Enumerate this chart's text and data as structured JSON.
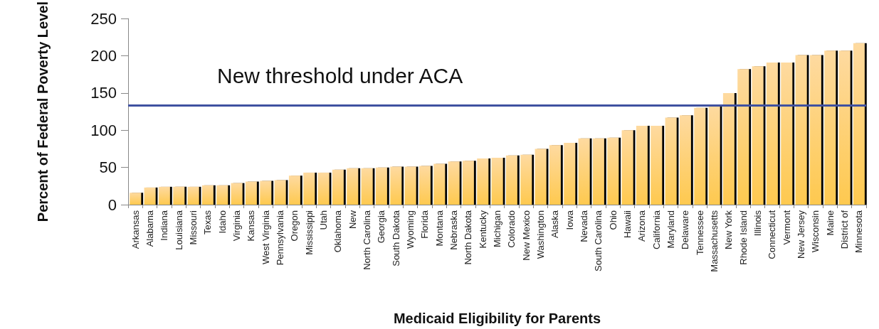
{
  "chart_data": {
    "type": "bar",
    "xlabel": "Medicaid Eligibility for Parents",
    "ylabel": "Percent of Federal Poverty Level",
    "categories": [
      "Arkansas",
      "Alabama",
      "Indiana",
      "Louisiana",
      "Missouri",
      "Texas",
      "Idaho",
      "Virginia",
      "Kansas",
      "West Virginia",
      "Pennsylvania",
      "Oregon",
      "Mississippi",
      "Utah",
      "Oklahoma",
      "New",
      "North Carolina",
      "Georgia",
      "South Dakota",
      "Wyoming",
      "Florida",
      "Montana",
      "Nebraska",
      "North Dakota",
      "Kentucky",
      "Michigan",
      "Colorado",
      "New Mexico",
      "Washington",
      "Alaska",
      "Iowa",
      "Nevada",
      "South Carolina",
      "Ohio",
      "Hawaii",
      "Arizona",
      "California",
      "Maryland",
      "Delaware",
      "Tennessee",
      "Massachusetts",
      "New York",
      "Rhode Island",
      "Illinois",
      "Connecticut",
      "Vermont",
      "New Jersey",
      "Wisconsin",
      "Maine",
      "District of",
      "Minnesota"
    ],
    "values": [
      16,
      23,
      24,
      24,
      24,
      26,
      26,
      29,
      31,
      32,
      33,
      39,
      43,
      43,
      47,
      49,
      49,
      50,
      51,
      51,
      52,
      55,
      58,
      59,
      62,
      63,
      66,
      67,
      75,
      80,
      83,
      89,
      89,
      90,
      100,
      106,
      106,
      117,
      120,
      130,
      133,
      150,
      182,
      186,
      191,
      191,
      201,
      201,
      207,
      207,
      217
    ],
    "color": "#fec94f",
    "ylim": [
      0,
      250
    ],
    "yticks": [
      0,
      50,
      100,
      150,
      200,
      250
    ],
    "grid": false,
    "ref_lines": [
      {
        "axis": "y",
        "value": 133,
        "label": "New threshold under ACA",
        "color": "#3f51a0"
      }
    ]
  }
}
